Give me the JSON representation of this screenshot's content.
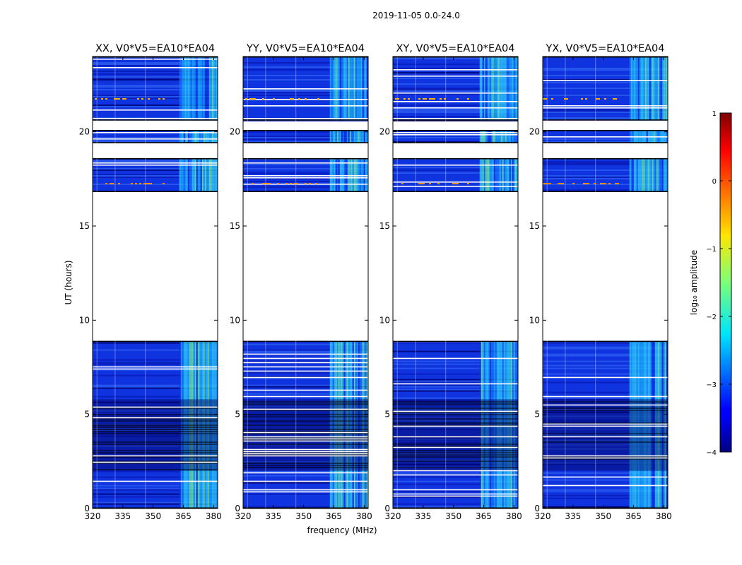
{
  "chart_data": {
    "type": "heatmap",
    "suptitle": "2019-11-05 0.0-24.0",
    "xlabel": "frequency (MHz)",
    "ylabel": "UT (hours)",
    "xlim": [
      320,
      382
    ],
    "ylim": [
      0,
      24
    ],
    "x_ticks": [
      "320",
      "335",
      "350",
      "365",
      "380"
    ],
    "y_ticks": [
      "0",
      "5",
      "10",
      "15",
      "20"
    ],
    "x_tick_values": [
      320,
      335,
      350,
      365,
      380
    ],
    "y_tick_values": [
      0,
      5,
      10,
      15,
      20
    ],
    "panels": [
      {
        "title": "XX, V0*V5=EA10*EA04",
        "polarization": "XX"
      },
      {
        "title": "YY, V0*V5=EA10*EA04",
        "polarization": "YY"
      },
      {
        "title": "XY, V0*V5=EA10*EA04",
        "polarization": "XY"
      },
      {
        "title": "YX, V0*V5=EA10*EA04",
        "polarization": "YX"
      }
    ],
    "data_segments_hours": [
      [
        0,
        8.9
      ],
      [
        16.8,
        18.6
      ],
      [
        19.4,
        20.1
      ],
      [
        20.6,
        24
      ]
    ],
    "gap_segments_hours": [
      [
        8.9,
        16.8
      ],
      [
        18.6,
        19.4
      ],
      [
        20.1,
        20.6
      ]
    ],
    "rfi_band_mhz": [
      363,
      383
    ],
    "colorbar": {
      "label": "log₁₀ amplitude",
      "min": -4,
      "max": 1,
      "ticks": [
        "1",
        "0",
        "−1",
        "−2",
        "−3",
        "−4"
      ],
      "tick_values": [
        1,
        0,
        -1,
        -2,
        -3,
        -4
      ]
    }
  }
}
